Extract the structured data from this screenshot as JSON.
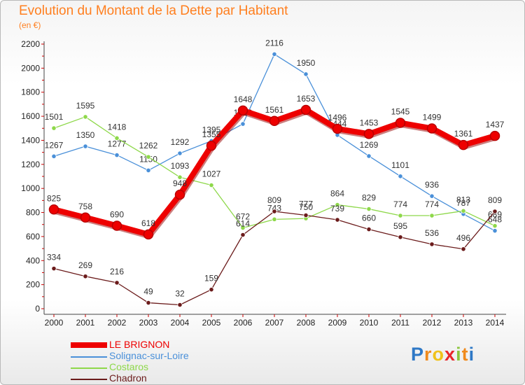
{
  "header": {
    "title": "Evolution du Montant de la Dette par Habitant",
    "unit": "(en €)"
  },
  "logo": {
    "letters": [
      "P",
      "r",
      "o",
      "x",
      "i",
      "t",
      "i"
    ],
    "colors": [
      "#2e78c6",
      "#f08a1c",
      "#f0c21a",
      "#e8262a",
      "#8cc63e",
      "#f08a1c",
      "#2e78c6"
    ]
  },
  "chart_data": {
    "type": "line",
    "x": [
      "2000",
      "2001",
      "2002",
      "2003",
      "2004",
      "2005",
      "2006",
      "2007",
      "2008",
      "2009",
      "2010",
      "2011",
      "2012",
      "2013",
      "2014"
    ],
    "ylim": [
      0,
      2200
    ],
    "yticks": [
      0,
      200,
      400,
      600,
      800,
      1000,
      1200,
      1400,
      1600,
      1800,
      2000,
      2200
    ],
    "grid": false,
    "legend": "bottom-left",
    "series": [
      {
        "name": "Solignac-sur-Loire",
        "color": "#4a90d9",
        "values": [
          1267,
          1350,
          1277,
          1150,
          1292,
          1395,
          1536,
          2116,
          1950,
          1444,
          1269,
          1101,
          936,
          787,
          648
        ]
      },
      {
        "name": "Costaros",
        "color": "#8ed84a",
        "values": [
          1501,
          1595,
          1418,
          1262,
          1093,
          1027,
          672,
          743,
          750,
          864,
          829,
          774,
          774,
          813,
          689
        ]
      },
      {
        "name": "Chadron",
        "color": "#6b1b1b",
        "values": [
          334,
          269,
          216,
          49,
          32,
          159,
          614,
          809,
          777,
          739,
          660,
          595,
          536,
          496,
          809
        ]
      },
      {
        "name": "LE BRIGNON",
        "color": "#ee0000",
        "values": [
          825,
          758,
          690,
          618,
          948,
          1355,
          1648,
          1561,
          1653,
          1496,
          1453,
          1545,
          1499,
          1361,
          1437
        ]
      }
    ],
    "legend_order": [
      "LE BRIGNON",
      "Solignac-sur-Loire",
      "Costaros",
      "Chadron"
    ]
  }
}
